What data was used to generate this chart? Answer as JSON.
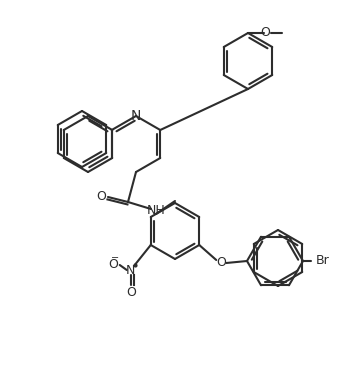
{
  "bg_color": "#ffffff",
  "bond_color": "#2d2d2d",
  "bond_lw": 1.5,
  "font_size": 9,
  "font_color": "#2d2d2d",
  "atoms": {
    "N_label": "N",
    "NH_label": "NH",
    "O_carbonyl": "O",
    "O_methoxy_top": "O",
    "CH3_methoxy_top": "",
    "O_ether_bottom": "O",
    "NO2_N": "N",
    "NO2_O1": "O",
    "NO2_O2": "O",
    "Br": "Br"
  }
}
